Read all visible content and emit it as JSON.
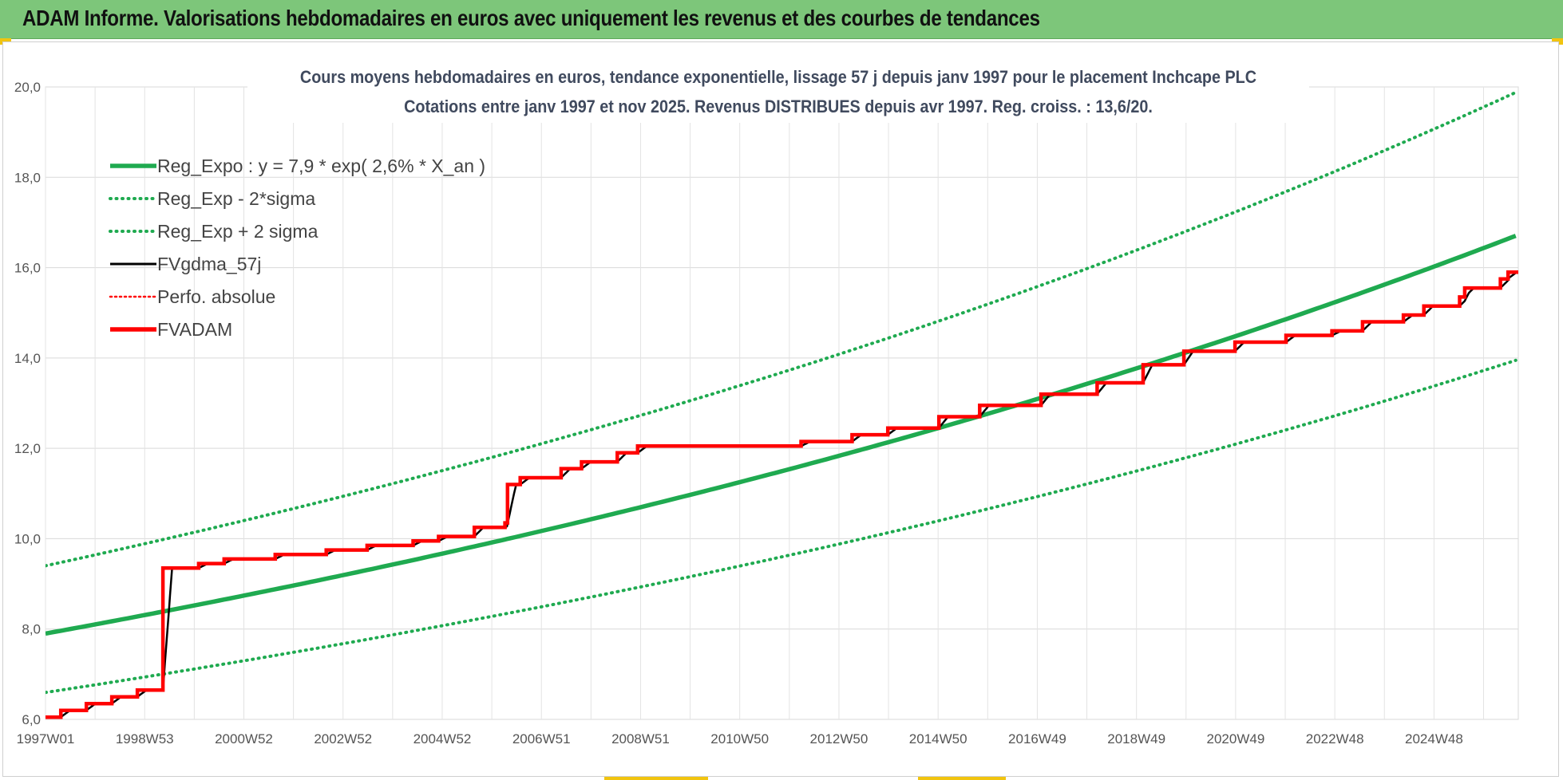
{
  "header": {
    "title": "ADAM Informe. Valorisations hebdomadaires en euros avec uniquement les revenus et des courbes de tendances"
  },
  "colors": {
    "banner": "#7dc67a",
    "trend_green": "#1faa50",
    "black": "#000000",
    "red": "#ff0000",
    "grid": "#d9d9d9"
  },
  "chart_data": {
    "type": "line",
    "title_line1": "Cours moyens hebdomadaires en euros, tendance exponentielle, lissage 57 j depuis janv 1997 pour le placement Inchcape PLC",
    "title_line2": "Cotations entre janv 1997 et nov 2025. Revenus DISTRIBUES depuis avr 1997.  Reg. croiss. : 13,6/20.",
    "xlabel": "",
    "ylabel": "",
    "ylim": [
      6,
      20
    ],
    "y_ticks": [
      "6,0",
      "8,0",
      "10,0",
      "12,0",
      "14,0",
      "16,0",
      "18,0",
      "20,0"
    ],
    "x_range_years": [
      1997.0,
      2025.85
    ],
    "x_tick_labels": [
      "1997W01",
      "1998W53",
      "2000W52",
      "2002W52",
      "2004W52",
      "2006W51",
      "2008W51",
      "2010W50",
      "2012W50",
      "2014W50",
      "2016W49",
      "2018W49",
      "2020W49",
      "2022W48",
      "2024W48"
    ],
    "grid": true,
    "legend_position": "top-left",
    "legend": [
      {
        "label": "Reg_Expo : y = 7,9 * exp( 2,6% *  X_an )",
        "style": "solid-thick",
        "color": "#1faa50"
      },
      {
        "label": "Reg_Exp - 2*sigma",
        "style": "dotted",
        "color": "#1faa50"
      },
      {
        "label": "Reg_Exp + 2 sigma",
        "style": "dotted",
        "color": "#1faa50"
      },
      {
        "label": "FVgdma_57j",
        "style": "solid",
        "color": "#000000"
      },
      {
        "label": "Perfo. absolue",
        "style": "dotted",
        "color": "#ff0000"
      },
      {
        "label": "FVADAM",
        "style": "solid-thick",
        "color": "#ff0000"
      }
    ],
    "trend": {
      "a": 7.9,
      "b": 0.026,
      "lower_factor": 0.835,
      "upper_factor": 1.19
    },
    "series_fvadam_steps": [
      [
        1997.0,
        6.05
      ],
      [
        1997.3,
        6.2
      ],
      [
        1997.8,
        6.35
      ],
      [
        1998.3,
        6.5
      ],
      [
        1998.8,
        6.65
      ],
      [
        1999.3,
        9.35
      ],
      [
        2000.0,
        9.45
      ],
      [
        2000.5,
        9.55
      ],
      [
        2001.5,
        9.65
      ],
      [
        2002.5,
        9.75
      ],
      [
        2003.3,
        9.85
      ],
      [
        2004.2,
        9.95
      ],
      [
        2004.7,
        10.05
      ],
      [
        2005.4,
        10.25
      ],
      [
        2006.0,
        10.35
      ],
      [
        2006.05,
        11.2
      ],
      [
        2006.3,
        11.35
      ],
      [
        2007.1,
        11.55
      ],
      [
        2007.5,
        11.7
      ],
      [
        2008.2,
        11.9
      ],
      [
        2008.6,
        12.05
      ],
      [
        2011.8,
        12.15
      ],
      [
        2012.8,
        12.3
      ],
      [
        2013.5,
        12.45
      ],
      [
        2014.5,
        12.7
      ],
      [
        2015.3,
        12.95
      ],
      [
        2016.5,
        13.2
      ],
      [
        2017.6,
        13.45
      ],
      [
        2018.5,
        13.85
      ],
      [
        2019.3,
        14.15
      ],
      [
        2020.3,
        14.35
      ],
      [
        2021.3,
        14.5
      ],
      [
        2022.2,
        14.6
      ],
      [
        2022.8,
        14.8
      ],
      [
        2023.6,
        14.95
      ],
      [
        2024.0,
        15.15
      ],
      [
        2024.7,
        15.35
      ],
      [
        2024.8,
        15.55
      ],
      [
        2025.5,
        15.75
      ],
      [
        2025.65,
        15.9
      ],
      [
        2025.85,
        15.9
      ]
    ]
  }
}
